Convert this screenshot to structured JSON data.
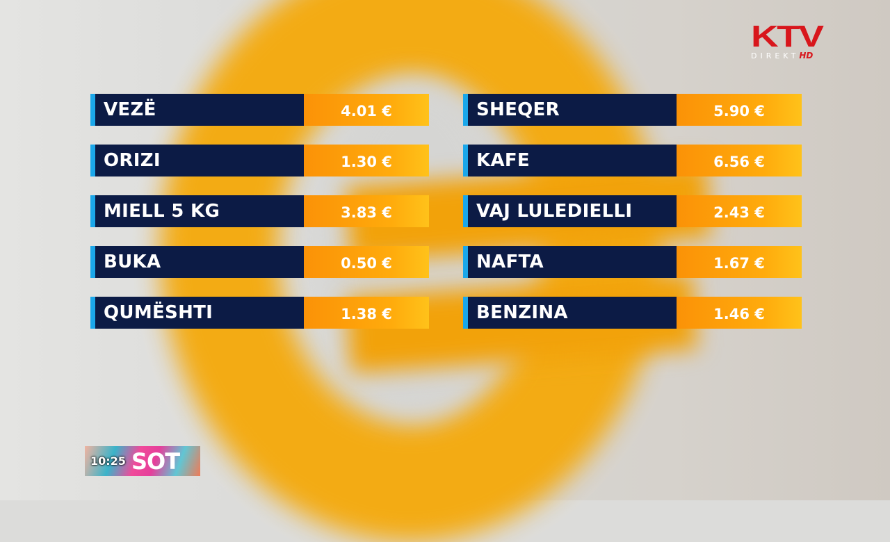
{
  "channel": {
    "logo": "KTV",
    "sublabel": "DIREKT",
    "hd": "HD",
    "brand_color": "#d8161c"
  },
  "show": {
    "time": "10:25",
    "name": "SOT"
  },
  "colors": {
    "name_bg": "#0c1b45",
    "price_bg": "#fb9207",
    "accent": "#1ba7ea"
  },
  "prices": {
    "left": [
      {
        "item": "VEZË",
        "price": "4.01 €"
      },
      {
        "item": "ORIZI",
        "price": "1.30 €"
      },
      {
        "item": "MIELL 5 KG",
        "price": "3.83 €"
      },
      {
        "item": "BUKA",
        "price": "0.50 €"
      },
      {
        "item": "QUMËSHTI",
        "price": "1.38 €"
      }
    ],
    "right": [
      {
        "item": "SHEQER",
        "price": "5.90 €"
      },
      {
        "item": "KAFE",
        "price": "6.56 €"
      },
      {
        "item": "VAJ LULEDIELLI",
        "price": "2.43 €"
      },
      {
        "item": "NAFTA",
        "price": "1.67 €"
      },
      {
        "item": "BENZINA",
        "price": "1.46 €"
      }
    ]
  }
}
